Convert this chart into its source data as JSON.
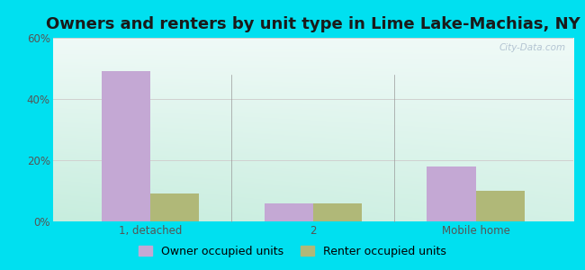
{
  "title": "Owners and renters by unit type in Lime Lake-Machias, NY",
  "categories": [
    "1, detached",
    "2",
    "Mobile home"
  ],
  "owner_values": [
    49,
    6,
    18
  ],
  "renter_values": [
    9,
    6,
    10
  ],
  "owner_color": "#c4a8d4",
  "renter_color": "#b0b878",
  "ylim": [
    0,
    60
  ],
  "yticks": [
    0,
    20,
    40,
    60
  ],
  "ytick_labels": [
    "0%",
    "20%",
    "40%",
    "60%"
  ],
  "background_outer": "#00e0f0",
  "grid_color": "#d0d0d0",
  "bar_width": 0.3,
  "title_fontsize": 13,
  "tick_fontsize": 8.5,
  "legend_fontsize": 9,
  "watermark_text": "City-Data.com"
}
